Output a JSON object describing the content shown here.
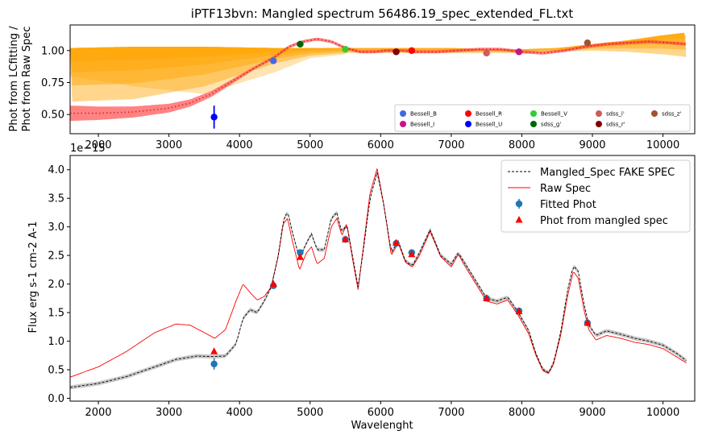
{
  "chart_data": [
    {
      "type": "line",
      "title": "iPTF13bvn: Mangled spectrum 56486.19_spec_extended_FL.txt",
      "xlabel": "",
      "ylabel_lines": [
        "Phot from LCfitting /",
        "Phot from Raw Spec"
      ],
      "xlim": [
        1600,
        10450
      ],
      "ylim": [
        0.35,
        1.2
      ],
      "xticks": [
        2000,
        3000,
        4000,
        5000,
        6000,
        7000,
        8000,
        9000,
        10000
      ],
      "xtick_labels": [
        "2000",
        "3000",
        "4000",
        "5000",
        "6000",
        "7000",
        "8000",
        "9000",
        "10000"
      ],
      "yticks": [
        0.5,
        0.75,
        1.0
      ],
      "ytick_labels": [
        "0.50",
        "0.75",
        "1.00"
      ],
      "grid": false,
      "ratio_curve": {
        "x": [
          1600,
          2000,
          2500,
          3000,
          3300,
          3600,
          3900,
          4200,
          4500,
          4700,
          4900,
          5100,
          5300,
          5500,
          5700,
          5900,
          6100,
          6300,
          6500,
          6800,
          7100,
          7400,
          7700,
          8000,
          8300,
          8600,
          8900,
          9200,
          9500,
          9800,
          10100,
          10330
        ],
        "y": [
          0.51,
          0.51,
          0.52,
          0.55,
          0.59,
          0.66,
          0.76,
          0.86,
          0.95,
          1.03,
          1.07,
          1.09,
          1.07,
          1.02,
          0.99,
          0.99,
          1.0,
          1.0,
          0.99,
          0.99,
          1.0,
          1.01,
          1.01,
          0.99,
          0.98,
          1.0,
          1.03,
          1.05,
          1.06,
          1.07,
          1.06,
          1.05
        ],
        "color": "#d62728",
        "band_color": "#ff4040"
      },
      "orange_band": {
        "color": "#ffa500",
        "x": [
          1600,
          2500,
          3500,
          4500,
          5000,
          5500,
          6000,
          6500,
          7000,
          7500,
          8000,
          8500,
          9000,
          9500,
          10000,
          10330
        ],
        "upper": [
          1.02,
          1.03,
          1.03,
          1.02,
          1.02,
          1.02,
          1.02,
          1.02,
          1.02,
          1.01,
          1.01,
          1.02,
          1.05,
          1.08,
          1.12,
          1.14
        ],
        "lower": [
          0.6,
          0.62,
          0.72,
          0.9,
          0.96,
          0.98,
          0.98,
          0.98,
          0.98,
          0.98,
          0.98,
          0.99,
          1.0,
          0.99,
          0.97,
          0.95
        ],
        "pale_lower": [
          0.8,
          0.72,
          0.66,
          0.83,
          0.94,
          0.97
        ]
      },
      "points": [
        {
          "name": "Bessell_B",
          "x": 4480,
          "y": 0.92,
          "color": "#4169e1"
        },
        {
          "name": "Bessell_I",
          "x": 7960,
          "y": 0.99,
          "color": "#c71585"
        },
        {
          "name": "Bessell_R",
          "x": 6440,
          "y": 1.0,
          "color": "#ff0000"
        },
        {
          "name": "Bessell_U",
          "x": 3640,
          "y": 0.48,
          "color": "#0000ff",
          "yerr": 0.09
        },
        {
          "name": "Bessell_V",
          "x": 5500,
          "y": 1.01,
          "color": "#32cd32"
        },
        {
          "name": "sdss_g'",
          "x": 4860,
          "y": 1.05,
          "color": "#006400"
        },
        {
          "name": "sdss_i'",
          "x": 7500,
          "y": 0.98,
          "color": "#cd5c5c"
        },
        {
          "name": "sdss_r'",
          "x": 6220,
          "y": 0.99,
          "color": "#800000"
        },
        {
          "name": "sdss_z'",
          "x": 8930,
          "y": 1.06,
          "color": "#a0522d"
        }
      ],
      "legend": {
        "placement": "lower right",
        "ncol": 5,
        "entries": [
          "Bessell_B",
          "Bessell_I",
          "Bessell_R",
          "Bessell_U",
          "Bessell_V",
          "sdss_g'",
          "sdss_i'",
          "sdss_r'",
          "sdss_z'"
        ]
      }
    },
    {
      "type": "line",
      "title": "",
      "xlabel": "Wavelenght",
      "ylabel": "Flux erg s-1 cm-2 A-1",
      "offset_text": "1e−15",
      "xlim": [
        1600,
        10450
      ],
      "ylim": [
        -0.05,
        4.25
      ],
      "xticks": [
        2000,
        3000,
        4000,
        5000,
        6000,
        7000,
        8000,
        9000,
        10000
      ],
      "xtick_labels": [
        "2000",
        "3000",
        "4000",
        "5000",
        "6000",
        "7000",
        "8000",
        "9000",
        "10000"
      ],
      "yticks": [
        0.0,
        0.5,
        1.0,
        1.5,
        2.0,
        2.5,
        3.0,
        3.5,
        4.0
      ],
      "ytick_labels": [
        "0.0",
        "0.5",
        "1.0",
        "1.5",
        "2.0",
        "2.5",
        "3.0",
        "3.5",
        "4.0"
      ],
      "grid": false,
      "series": [
        {
          "name": "Mangled_Spec FAKE SPEC",
          "style": "dashed",
          "color": "#000000",
          "band_color": "#c8c8c8",
          "x": [
            1600,
            2000,
            2400,
            2800,
            3100,
            3400,
            3600,
            3800,
            3950,
            4050,
            4150,
            4250,
            4350,
            4450,
            4550,
            4620,
            4680,
            4750,
            4850,
            4950,
            5020,
            5100,
            5200,
            5300,
            5380,
            5450,
            5520,
            5600,
            5680,
            5750,
            5850,
            5950,
            6050,
            6150,
            6250,
            6350,
            6450,
            6550,
            6700,
            6850,
            7000,
            7100,
            7200,
            7350,
            7500,
            7650,
            7800,
            7950,
            8100,
            8200,
            8300,
            8380,
            8450,
            8550,
            8650,
            8730,
            8800,
            8880,
            8950,
            9050,
            9200,
            9400,
            9600,
            9800,
            10000,
            10200,
            10330
          ],
          "y": [
            0.19,
            0.26,
            0.38,
            0.55,
            0.68,
            0.74,
            0.73,
            0.74,
            0.95,
            1.4,
            1.55,
            1.5,
            1.7,
            1.95,
            2.5,
            3.1,
            3.28,
            2.9,
            2.45,
            2.72,
            2.88,
            2.6,
            2.6,
            3.15,
            3.25,
            2.9,
            3.05,
            2.5,
            1.95,
            2.55,
            3.5,
            3.95,
            3.35,
            2.55,
            2.75,
            2.4,
            2.32,
            2.55,
            2.95,
            2.5,
            2.35,
            2.55,
            2.35,
            2.05,
            1.75,
            1.7,
            1.77,
            1.5,
            1.18,
            0.78,
            0.5,
            0.45,
            0.62,
            1.15,
            1.9,
            2.32,
            2.22,
            1.65,
            1.28,
            1.1,
            1.18,
            1.12,
            1.05,
            1.0,
            0.93,
            0.78,
            0.66
          ]
        },
        {
          "name": "Raw Spec",
          "style": "solid",
          "color": "#ff0000",
          "x": [
            1600,
            2000,
            2400,
            2800,
            3100,
            3300,
            3500,
            3650,
            3800,
            3950,
            4050,
            4150,
            4250,
            4350,
            4450,
            4550,
            4620,
            4680,
            4750,
            4850,
            4950,
            5020,
            5100,
            5200,
            5300,
            5380,
            5450,
            5520,
            5600,
            5680,
            5750,
            5850,
            5950,
            6050,
            6150,
            6250,
            6350,
            6450,
            6550,
            6700,
            6850,
            7000,
            7100,
            7200,
            7350,
            7500,
            7650,
            7800,
            7950,
            8100,
            8200,
            8300,
            8380,
            8450,
            8550,
            8650,
            8730,
            8800,
            8880,
            8950,
            9050,
            9200,
            9400,
            9600,
            9800,
            10000,
            10200,
            10330
          ],
          "y": [
            0.37,
            0.55,
            0.82,
            1.15,
            1.3,
            1.28,
            1.15,
            1.05,
            1.2,
            1.7,
            2.0,
            1.85,
            1.72,
            1.78,
            1.95,
            2.5,
            3.05,
            3.15,
            2.75,
            2.25,
            2.55,
            2.65,
            2.35,
            2.45,
            3.0,
            3.15,
            2.85,
            3.05,
            2.45,
            1.9,
            2.6,
            3.6,
            4.02,
            3.35,
            2.5,
            2.72,
            2.38,
            2.3,
            2.5,
            2.92,
            2.48,
            2.3,
            2.52,
            2.3,
            2.0,
            1.7,
            1.65,
            1.72,
            1.45,
            1.12,
            0.75,
            0.48,
            0.44,
            0.6,
            1.1,
            1.8,
            2.22,
            2.1,
            1.55,
            1.2,
            1.02,
            1.1,
            1.05,
            0.98,
            0.94,
            0.87,
            0.72,
            0.62
          ]
        },
        {
          "name": "Fitted Phot",
          "style": "errorbar",
          "color": "#1f77b4",
          "x": [
            3640,
            4480,
            4860,
            5500,
            6220,
            6440,
            7500,
            7960,
            8930
          ],
          "y": [
            0.6,
            1.97,
            2.55,
            2.78,
            2.71,
            2.55,
            1.75,
            1.53,
            1.32
          ],
          "yerr": [
            0.1,
            0.04,
            0.04,
            0.04,
            0.04,
            0.04,
            0.04,
            0.04,
            0.04
          ]
        },
        {
          "name": "Phot from mangled spec",
          "style": "marker",
          "color": "#ff0000",
          "x": [
            3640,
            4480,
            4860,
            5500,
            6220,
            6440,
            7500,
            7960,
            8930
          ],
          "y": [
            0.82,
            2.0,
            2.47,
            2.78,
            2.72,
            2.52,
            1.75,
            1.52,
            1.32
          ]
        }
      ],
      "legend": {
        "placement": "top-right",
        "entries": [
          "Mangled_Spec FAKE SPEC",
          "Raw Spec",
          "Fitted Phot",
          "Phot from mangled spec"
        ]
      }
    }
  ]
}
